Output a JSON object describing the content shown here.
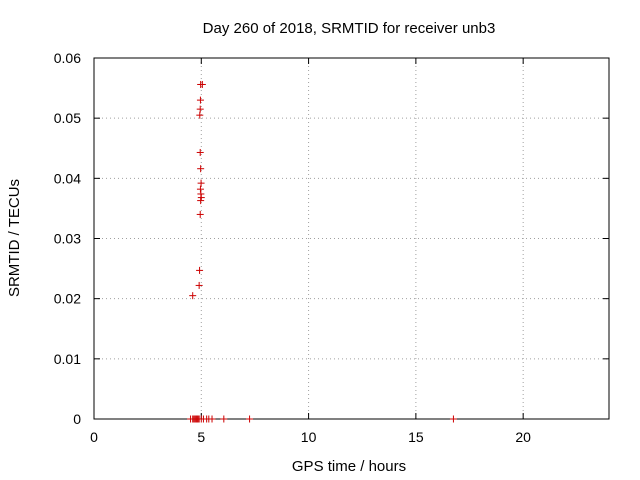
{
  "chart_data": {
    "type": "scatter",
    "title": "Day 260 of 2018, SRMTID for receiver unb3",
    "xlabel": "GPS time / hours",
    "ylabel": "SRMTID / TECUs",
    "xlim": [
      0,
      24
    ],
    "ylim": [
      0,
      0.06
    ],
    "xticks": [
      0,
      5,
      10,
      15,
      20
    ],
    "yticks": [
      0,
      0.01,
      0.02,
      0.03,
      0.04,
      0.05,
      0.06
    ],
    "xtick_labels": [
      "0",
      "5",
      "10",
      "15",
      "20"
    ],
    "ytick_labels": [
      "0",
      "0.01",
      "0.02",
      "0.03",
      "0.04",
      "0.05",
      "0.06"
    ],
    "grid": true,
    "marker": "+",
    "series": [
      {
        "name": "SRMTID",
        "color": "#cc0000",
        "points": [
          [
            4.6,
            0.0205
          ],
          [
            4.9,
            0.0222
          ],
          [
            4.92,
            0.0247
          ],
          [
            4.95,
            0.034
          ],
          [
            4.97,
            0.0363
          ],
          [
            5.0,
            0.0368
          ],
          [
            4.98,
            0.0374
          ],
          [
            4.96,
            0.0382
          ],
          [
            4.99,
            0.0392
          ],
          [
            4.97,
            0.0416
          ],
          [
            4.95,
            0.0443
          ],
          [
            4.93,
            0.0505
          ],
          [
            4.95,
            0.0515
          ],
          [
            4.96,
            0.053
          ],
          [
            4.97,
            0.0556
          ],
          [
            5.05,
            0.0556
          ],
          [
            4.5,
            0.0
          ],
          [
            4.6,
            0.0
          ],
          [
            4.65,
            0.0
          ],
          [
            4.7,
            0.0
          ],
          [
            4.75,
            0.0
          ],
          [
            4.8,
            0.0
          ],
          [
            4.85,
            0.0
          ],
          [
            4.9,
            0.0
          ],
          [
            5.0,
            0.0
          ],
          [
            5.1,
            0.0
          ],
          [
            5.25,
            0.0
          ],
          [
            5.35,
            0.0
          ],
          [
            5.5,
            0.0
          ],
          [
            6.05,
            0.0
          ],
          [
            7.25,
            0.0
          ],
          [
            16.75,
            0.0
          ]
        ]
      }
    ]
  }
}
